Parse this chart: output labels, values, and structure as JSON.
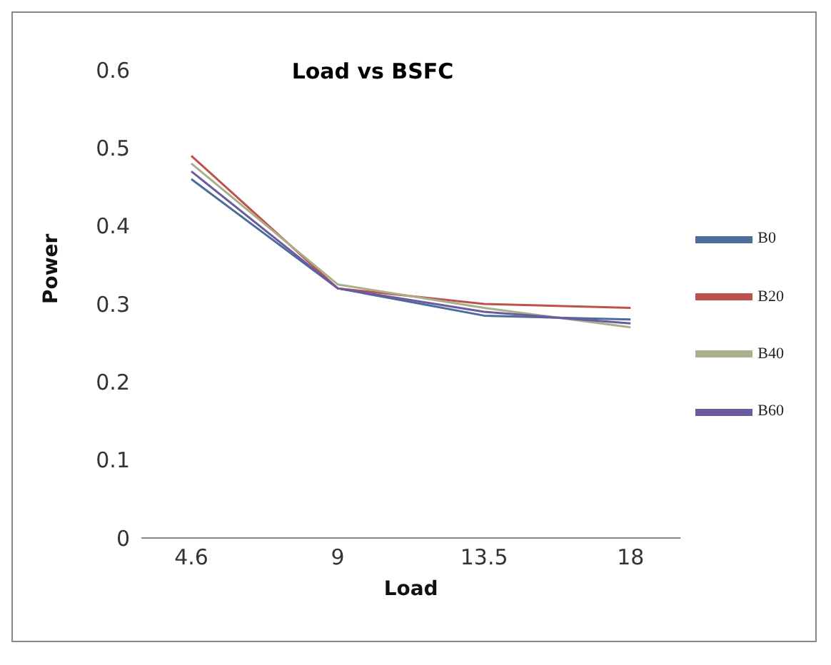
{
  "chart_data": {
    "type": "line",
    "title": "Load vs BSFC",
    "xlabel": "Load",
    "ylabel": "Power",
    "categories": [
      "4.6",
      "9",
      "13.5",
      "18"
    ],
    "series": [
      {
        "name": "B0",
        "color": "#4a6d9c",
        "values": [
          0.46,
          0.32,
          0.285,
          0.28
        ]
      },
      {
        "name": "B20",
        "color": "#c0504d",
        "values": [
          0.49,
          0.32,
          0.3,
          0.295
        ]
      },
      {
        "name": "B40",
        "color": "#a8b08a",
        "values": [
          0.48,
          0.325,
          0.295,
          0.27
        ]
      },
      {
        "name": "B60",
        "color": "#6b5b9e",
        "values": [
          0.47,
          0.32,
          0.29,
          0.275
        ]
      }
    ],
    "ylim": [
      0,
      0.6
    ],
    "yticks": [
      0,
      0.1,
      0.2,
      0.3,
      0.4,
      0.5,
      0.6
    ],
    "grid": false,
    "legend": "right",
    "marker": "none",
    "line_style": "solid"
  }
}
